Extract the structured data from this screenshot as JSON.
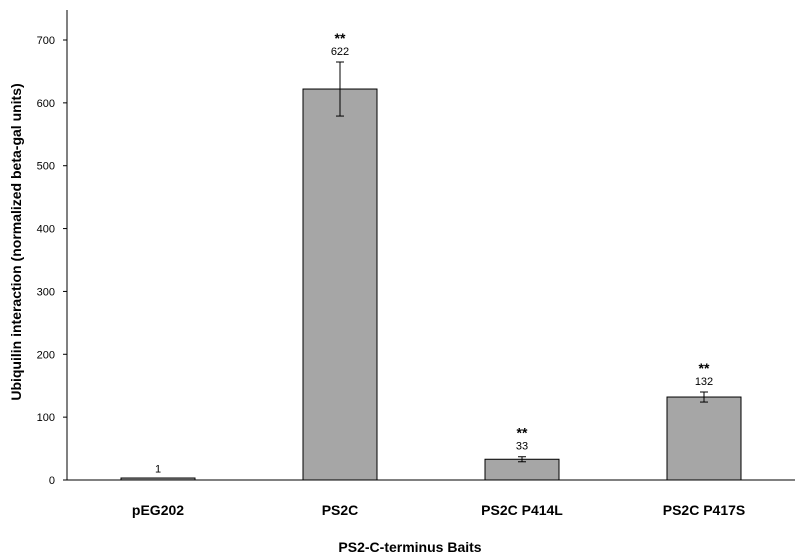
{
  "chart_data": {
    "type": "bar",
    "title": "",
    "xlabel": "PS2-C-terminus Baits",
    "ylabel": "Ubiquilin interaction (normalized beta-gal units)",
    "ylim": [
      0,
      700
    ],
    "yticks": [
      "0",
      "100",
      "200",
      "300",
      "400",
      "500",
      "600",
      "700"
    ],
    "categories": [
      "pEG202",
      "PS2C",
      "PS2C P414L",
      "PS2C P417S"
    ],
    "values": [
      1,
      622,
      33,
      132
    ],
    "error": [
      0,
      43,
      4,
      8
    ],
    "data_labels": [
      "1",
      "622",
      "33",
      "132"
    ],
    "significance": [
      "",
      "**",
      "**",
      "**"
    ],
    "grid": false,
    "legend": "none",
    "colors": {
      "bar": "#a6a6a6",
      "bar_stroke": "#000000",
      "axis": "#000000"
    }
  }
}
